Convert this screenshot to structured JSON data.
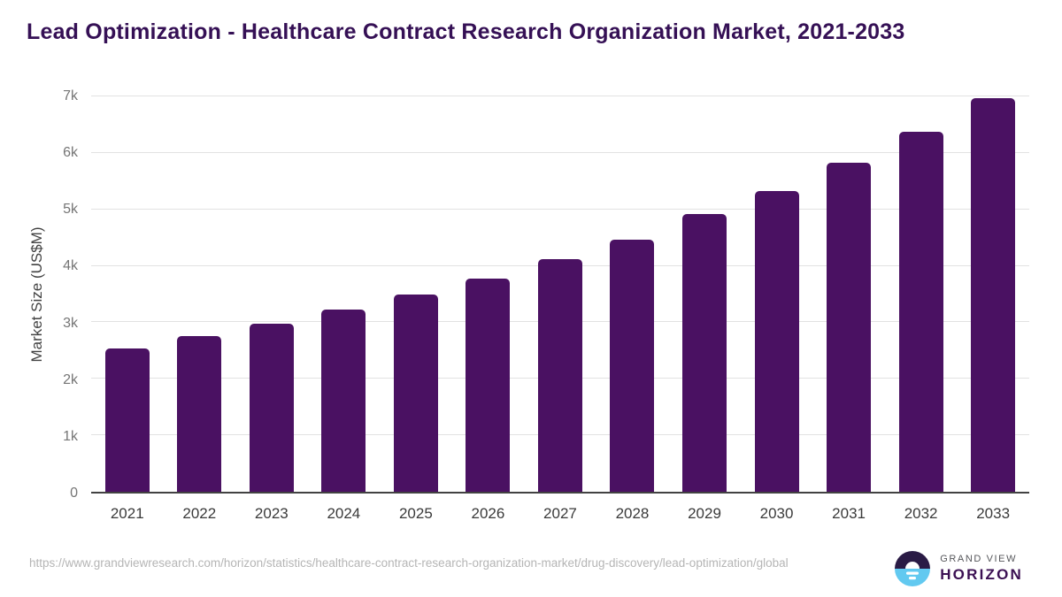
{
  "header": {
    "title": "Lead Optimization - Healthcare Contract Research Organization Market, 2021-2033"
  },
  "chart_data": {
    "type": "bar",
    "title": "Lead Optimization - Healthcare Contract Research Organization Market, 2021-2033",
    "categories": [
      "2021",
      "2022",
      "2023",
      "2024",
      "2025",
      "2026",
      "2027",
      "2028",
      "2029",
      "2030",
      "2031",
      "2032",
      "2033"
    ],
    "values": [
      2540,
      2760,
      2980,
      3220,
      3490,
      3780,
      4120,
      4470,
      4910,
      5330,
      5820,
      6370,
      6970
    ],
    "xlabel": "",
    "ylabel": "Market Size (US$M)",
    "ylim": [
      0,
      7000
    ],
    "yticks": [
      "0",
      "1k",
      "2k",
      "3k",
      "4k",
      "5k",
      "6k",
      "7k"
    ],
    "grid": true,
    "legend": false,
    "bar_color": "#4a1162"
  },
  "colors": {
    "title": "#351055",
    "bar": "#4a1162",
    "gridline": "#e2e2e2",
    "axis_line": "#424242",
    "tick_label": "#757575",
    "x_label": "#3a3a3a",
    "url_text": "#b5b5b5",
    "logo_purple": "#2a1b45",
    "logo_blue": "#62c9f0",
    "brand_purple": "#3b1053"
  },
  "footer": {
    "source_url": "https://www.grandviewresearch.com/horizon/statistics/healthcare-contract-research-organization-market/drug-discovery/lead-optimization/global"
  },
  "logo": {
    "brand_top": "GRAND VIEW",
    "brand_bottom": "HORIZON"
  }
}
